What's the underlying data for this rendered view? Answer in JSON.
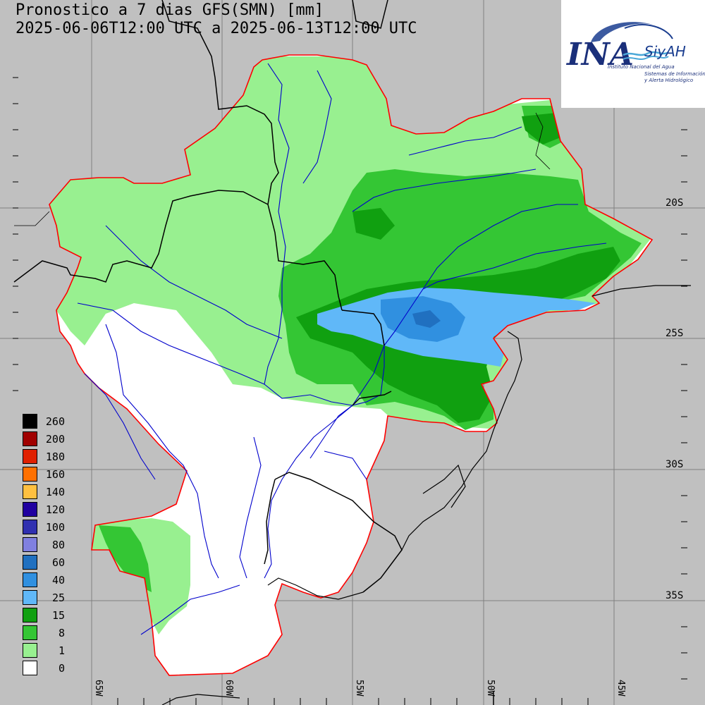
{
  "title": {
    "line1": "Pronostico a 7 dias GFS(SMN) [mm]",
    "line2": "2025-06-06T12:00 UTC a 2025-06-13T12:00 UTC"
  },
  "logo": {
    "brand": "INA",
    "sub": "SiyAH",
    "org": "Instituto Nacional del Agua",
    "desc1": "Sistemas de Información",
    "desc2": "y Alerta Hidrológico"
  },
  "legend": [
    {
      "label": "260",
      "color": "#000000"
    },
    {
      "label": "200",
      "color": "#a00000"
    },
    {
      "label": "180",
      "color": "#e02000"
    },
    {
      "label": "160",
      "color": "#ff7000"
    },
    {
      "label": "140",
      "color": "#ffc040"
    },
    {
      "label": "120",
      "color": "#2000a0"
    },
    {
      "label": "100",
      "color": "#3030b0"
    },
    {
      "label": "80",
      "color": "#8080e0"
    },
    {
      "label": "60",
      "color": "#2070c0"
    },
    {
      "label": "40",
      "color": "#3090e0"
    },
    {
      "label": "25",
      "color": "#60b8f8"
    },
    {
      "label": "15",
      "color": "#10a010"
    },
    {
      "label": "8",
      "color": "#34c634"
    },
    {
      "label": "1",
      "color": "#98f090"
    },
    {
      "label": "0",
      "color": "#ffffff"
    }
  ],
  "lat_labels": [
    "20S",
    "25S",
    "30S",
    "35S"
  ],
  "lon_labels": [
    "65W",
    "60W",
    "55W",
    "50W",
    "45W"
  ],
  "colors": {
    "background": "#c0c0c0",
    "basin_outline": "#ff0000",
    "rivers": "#0000cc",
    "borders": "#000000"
  }
}
